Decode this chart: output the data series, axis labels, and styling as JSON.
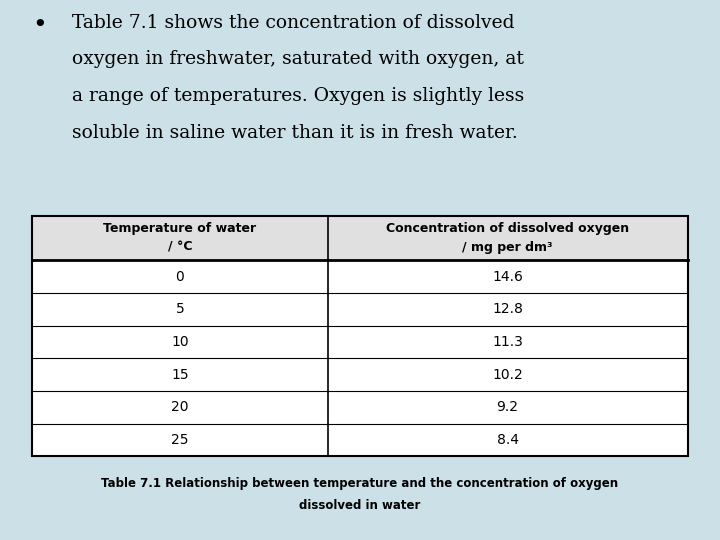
{
  "bullet_lines": [
    "Table 7.1 shows the concentration of dissolved",
    "oxygen in freshwater, saturated with oxygen, at",
    "a range of temperatures. Oxygen is slightly less",
    "soluble in saline water than it is in fresh water."
  ],
  "col1_header_line1": "Temperature of water",
  "col1_header_line2": "/ °C",
  "col2_header_line1": "Concentration of dissolved oxygen",
  "col2_header_line2": "/ mg per dm³",
  "temperatures": [
    "0",
    "5",
    "10",
    "15",
    "20",
    "25"
  ],
  "concentrations": [
    "14.6",
    "12.8",
    "11.3",
    "10.2",
    "9.2",
    "8.4"
  ],
  "caption_line1": "Table 7.1 Relationship between temperature and the concentration of oxygen",
  "caption_line2": "dissolved in water",
  "bg_color": "#cce0e8",
  "table_bg": "#ffffff",
  "header_bg": "#e0e0e0",
  "text_color": "#000000",
  "border_color": "#000000"
}
